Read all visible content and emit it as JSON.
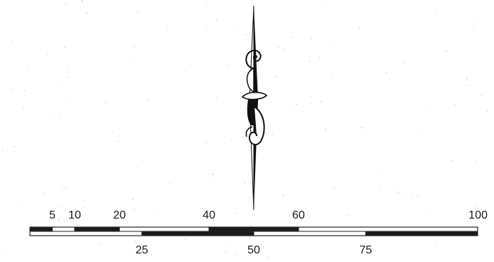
{
  "scale_bar": {
    "max": 100,
    "top_labels": [
      "5",
      "10",
      "20",
      "40",
      "60",
      "100"
    ],
    "top_values": [
      5,
      10,
      20,
      40,
      60,
      100
    ],
    "top_segments": [
      {
        "from": 0,
        "to": 5,
        "fill": "dark"
      },
      {
        "from": 5,
        "to": 10,
        "fill": "light"
      },
      {
        "from": 10,
        "to": 20,
        "fill": "dark"
      },
      {
        "from": 20,
        "to": 40,
        "fill": "light"
      },
      {
        "from": 40,
        "to": 60,
        "fill": "dark"
      },
      {
        "from": 60,
        "to": 100,
        "fill": "light"
      }
    ],
    "bottom_labels": [
      "25",
      "50",
      "75"
    ],
    "bottom_values": [
      25,
      50,
      75
    ],
    "bottom_segments": [
      {
        "from": 0,
        "to": 25,
        "fill": "light"
      },
      {
        "from": 25,
        "to": 50,
        "fill": "dark"
      },
      {
        "from": 50,
        "to": 75,
        "fill": "light"
      },
      {
        "from": 75,
        "to": 100,
        "fill": "dark"
      }
    ],
    "colors": {
      "dark": "#1c1c1c",
      "light": "#ffffff",
      "outline": "#222222"
    }
  },
  "north_arrow": {
    "icon": "ornate-north-arrow-icon",
    "color": "#111111"
  }
}
